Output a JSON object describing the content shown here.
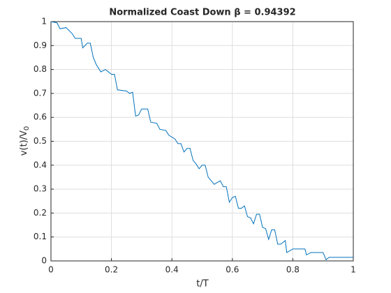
{
  "chart_data": {
    "type": "line",
    "title": "Normalized Coast Down β = 0.94392",
    "xlabel": "t/T",
    "ylabel": "v(t)/V",
    "ylabel_sub": "0",
    "xlim": [
      0,
      1
    ],
    "ylim": [
      0,
      1
    ],
    "xticks": [
      0,
      0.2,
      0.4,
      0.6,
      0.8,
      1
    ],
    "yticks": [
      0,
      0.1,
      0.2,
      0.3,
      0.4,
      0.5,
      0.6,
      0.7,
      0.8,
      0.9,
      1
    ],
    "grid": true,
    "series": [
      {
        "color": "#0072bd",
        "x": [
          0,
          0.02,
          0.03,
          0.05,
          0.07,
          0.08,
          0.1,
          0.105,
          0.12,
          0.13,
          0.14,
          0.15,
          0.165,
          0.18,
          0.2,
          0.21,
          0.22,
          0.25,
          0.26,
          0.27,
          0.28,
          0.29,
          0.3,
          0.32,
          0.33,
          0.35,
          0.36,
          0.38,
          0.39,
          0.41,
          0.42,
          0.43,
          0.44,
          0.45,
          0.46,
          0.47,
          0.48,
          0.49,
          0.5,
          0.51,
          0.52,
          0.54,
          0.56,
          0.57,
          0.58,
          0.59,
          0.6,
          0.61,
          0.62,
          0.63,
          0.64,
          0.65,
          0.66,
          0.67,
          0.68,
          0.69,
          0.7,
          0.71,
          0.72,
          0.73,
          0.74,
          0.75,
          0.76,
          0.775,
          0.78,
          0.8,
          0.84,
          0.845,
          0.86,
          0.9,
          0.91,
          0.92,
          1
        ],
        "values": [
          1,
          0.995,
          0.97,
          0.975,
          0.95,
          0.93,
          0.93,
          0.89,
          0.91,
          0.91,
          0.85,
          0.82,
          0.79,
          0.8,
          0.78,
          0.78,
          0.715,
          0.71,
          0.7,
          0.705,
          0.605,
          0.61,
          0.635,
          0.635,
          0.58,
          0.575,
          0.55,
          0.545,
          0.525,
          0.51,
          0.49,
          0.49,
          0.455,
          0.47,
          0.47,
          0.42,
          0.405,
          0.385,
          0.4,
          0.4,
          0.35,
          0.32,
          0.335,
          0.31,
          0.31,
          0.245,
          0.265,
          0.27,
          0.22,
          0.22,
          0.23,
          0.185,
          0.18,
          0.155,
          0.195,
          0.195,
          0.14,
          0.135,
          0.09,
          0.13,
          0.13,
          0.07,
          0.07,
          0.085,
          0.035,
          0.05,
          0.05,
          0.025,
          0.035,
          0.035,
          0.005,
          0.015,
          0.015
        ]
      }
    ]
  }
}
